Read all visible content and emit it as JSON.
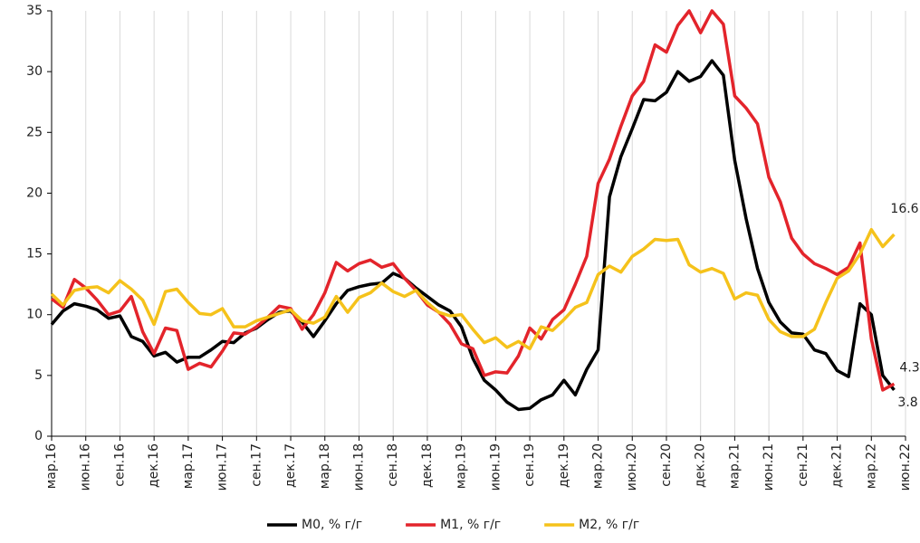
{
  "chart_data": {
    "type": "line",
    "categories": [
      "мар.16",
      null,
      null,
      "июн.16",
      null,
      null,
      "сен.16",
      null,
      null,
      "дек.16",
      null,
      null,
      "мар.17",
      null,
      null,
      "июн.17",
      null,
      null,
      "сен.17",
      null,
      null,
      "дек.17",
      null,
      null,
      "мар.18",
      null,
      null,
      "июн.18",
      null,
      null,
      "сен.18",
      null,
      null,
      "дек.18",
      null,
      null,
      "мар.19",
      null,
      null,
      "июн.19",
      null,
      null,
      "сен.19",
      null,
      null,
      "дек.19",
      null,
      null,
      "мар.20",
      null,
      null,
      "июн.20",
      null,
      null,
      "сен.20",
      null,
      null,
      "дек.20",
      null,
      null,
      "мар.21",
      null,
      null,
      "июн.21",
      null,
      null,
      "сен.21",
      null,
      null,
      "дек.21",
      null,
      null,
      "мар.22",
      null,
      null,
      "июн.22"
    ],
    "series": [
      {
        "name": "М0, % г/г",
        "color": "#000000",
        "values": [
          9.2,
          10.3,
          10.9,
          10.7,
          10.4,
          9.7,
          9.9,
          8.2,
          7.8,
          6.6,
          6.9,
          6.1,
          6.5,
          6.5,
          7.1,
          7.8,
          7.7,
          8.5,
          8.9,
          9.6,
          10.2,
          10.3,
          9.4,
          8.2,
          9.5,
          10.9,
          12.0,
          12.3,
          12.5,
          12.6,
          13.4,
          13.0,
          12.2,
          11.5,
          10.8,
          10.3,
          9.0,
          6.4,
          4.6,
          3.8,
          2.8,
          2.2,
          2.3,
          3.0,
          3.4,
          4.6,
          3.4,
          5.5,
          7.1,
          19.7,
          23.0,
          25.3,
          27.7,
          27.6,
          28.3,
          30.0,
          29.2,
          29.6,
          30.9,
          29.7,
          22.7,
          17.9,
          13.8,
          11.0,
          9.4,
          8.5,
          8.4,
          7.1,
          6.8,
          5.4,
          4.9,
          10.9,
          10.0,
          5.0,
          3.8,
          null
        ]
      },
      {
        "name": "М1, % г/г",
        "color": "#e3242b",
        "values": [
          11.3,
          10.6,
          12.9,
          12.2,
          11.2,
          10.0,
          10.3,
          11.5,
          8.6,
          6.8,
          8.9,
          8.7,
          5.5,
          6.0,
          5.7,
          7.0,
          8.5,
          8.4,
          9.0,
          9.8,
          10.7,
          10.5,
          8.8,
          10.0,
          11.8,
          14.3,
          13.6,
          14.2,
          14.5,
          13.9,
          14.2,
          13.0,
          12.0,
          10.8,
          10.2,
          9.2,
          7.6,
          7.2,
          5.0,
          5.3,
          5.2,
          6.6,
          8.9,
          8.0,
          9.6,
          10.4,
          12.5,
          14.8,
          20.8,
          22.8,
          25.5,
          28.0,
          29.2,
          32.2,
          31.6,
          33.8,
          35.0,
          33.2,
          35.0,
          33.9,
          28.0,
          27.0,
          25.7,
          21.3,
          19.3,
          16.3,
          15.0,
          14.2,
          13.8,
          13.3,
          13.9,
          15.9,
          8.0,
          3.8,
          4.3,
          null
        ]
      },
      {
        "name": "М2, % г/г",
        "color": "#f5c21b",
        "values": [
          11.7,
          10.8,
          12.0,
          12.2,
          12.3,
          11.8,
          12.8,
          12.1,
          11.2,
          9.2,
          11.9,
          12.1,
          11.0,
          10.1,
          10.0,
          10.5,
          9.0,
          9.0,
          9.5,
          9.8,
          10.1,
          10.4,
          9.5,
          9.3,
          9.8,
          11.5,
          10.2,
          11.4,
          11.8,
          12.6,
          11.9,
          11.5,
          12.0,
          11.0,
          10.2,
          9.9,
          10.0,
          8.8,
          7.7,
          8.1,
          7.3,
          7.8,
          7.2,
          9.0,
          8.7,
          9.6,
          10.6,
          11.0,
          13.3,
          14.0,
          13.5,
          14.8,
          15.4,
          16.2,
          16.1,
          16.2,
          14.1,
          13.5,
          13.8,
          13.4,
          11.3,
          11.8,
          11.6,
          9.6,
          8.6,
          8.2,
          8.2,
          8.8,
          11.0,
          13.0,
          13.6,
          15.0,
          17.0,
          15.6,
          16.6,
          null
        ]
      }
    ],
    "ylim": [
      0,
      35
    ],
    "yticks": [
      0,
      5,
      10,
      15,
      20,
      25,
      30,
      35
    ],
    "grid": true,
    "legend": "bottom"
  }
}
